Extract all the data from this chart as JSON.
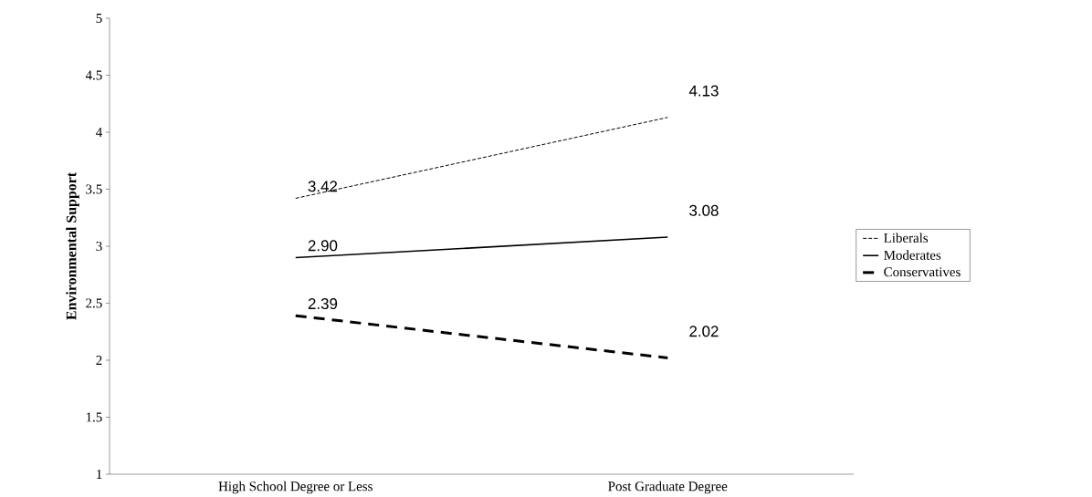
{
  "chart_data": {
    "type": "line",
    "ylabel": "Environmental Support",
    "categories": [
      "High School Degree or Less",
      "Post Graduate Degree"
    ],
    "series": [
      {
        "name": "Liberals",
        "color": "#000000",
        "values": [
          3.42,
          4.13
        ],
        "line_style": "dotted",
        "value_labels": [
          "3.42",
          "4.13"
        ]
      },
      {
        "name": "Moderates",
        "color": "#000000",
        "values": [
          2.9,
          3.08
        ],
        "line_style": "solid",
        "value_labels": [
          "2.90",
          "3.08"
        ]
      },
      {
        "name": "Conservatives",
        "color": "#000000",
        "values": [
          2.39,
          2.02
        ],
        "line_style": "dashed",
        "value_labels": [
          "2.39",
          "2.02"
        ]
      }
    ],
    "ylim": [
      1,
      5
    ],
    "yticks": [
      1,
      1.5,
      2,
      2.5,
      3,
      3.5,
      4,
      4.5,
      5
    ],
    "legend": "right",
    "grid": false
  }
}
